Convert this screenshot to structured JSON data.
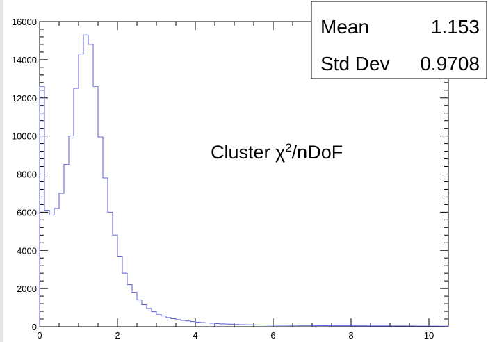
{
  "chart_data": {
    "type": "histogram",
    "title": "",
    "xlabel": "",
    "ylabel": "",
    "xlim": [
      0,
      10.5
    ],
    "ylim": [
      0,
      16000
    ],
    "x_ticks": [
      "0",
      "2",
      "4",
      "6",
      "8",
      "10"
    ],
    "y_ticks": [
      "0",
      "2000",
      "4000",
      "6000",
      "8000",
      "10000",
      "12000",
      "14000",
      "16000"
    ],
    "bin_width": 0.125,
    "bin_start": 0,
    "series": [
      {
        "color": "#5b5fd6",
        "values": [
          12600,
          6100,
          5850,
          6200,
          7000,
          8500,
          10000,
          12500,
          14300,
          15300,
          14800,
          12600,
          9950,
          7800,
          6000,
          4800,
          3700,
          2800,
          2200,
          1800,
          1400,
          1150,
          950,
          780,
          650,
          560,
          480,
          420,
          370,
          330,
          300,
          270,
          240,
          220,
          200,
          180,
          165,
          150,
          140,
          130,
          120,
          110,
          105,
          100,
          95,
          90,
          85,
          80,
          78,
          75,
          72,
          70,
          68,
          66,
          64,
          62,
          60,
          58,
          56,
          54,
          52,
          50,
          49,
          48,
          47,
          46,
          45,
          44,
          43,
          42,
          41,
          40,
          39,
          38,
          37,
          36,
          35,
          34,
          33,
          32,
          31,
          30,
          29,
          28
        ]
      }
    ],
    "grid": false
  },
  "stats": {
    "mean_label": "Mean",
    "mean_value": "1.153",
    "std_label": "Std Dev",
    "std_value": "0.9708"
  },
  "annotation": {
    "prefix": "Cluster χ",
    "sup": "2",
    "suffix": "/nDoF"
  }
}
